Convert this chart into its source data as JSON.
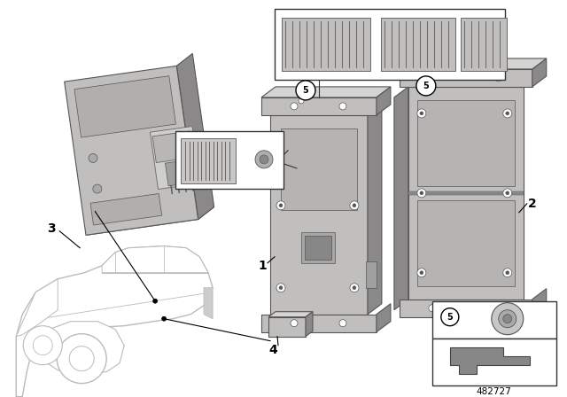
{
  "diagram_id": "482727",
  "background_color": "#ffffff",
  "part_face": "#c0bfbe",
  "part_dark": "#8a8888",
  "part_light": "#d5d4d3",
  "part_edge": "#555555",
  "label_color": "#111111",
  "car_color": "#c8c8c8"
}
